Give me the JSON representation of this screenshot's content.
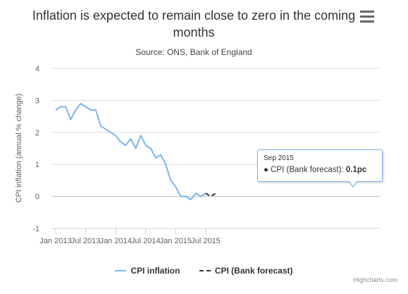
{
  "chart_data": {
    "type": "line",
    "title": "Inflation is expected to remain close to zero in the coming months",
    "subtitle": "Source: ONS, Bank of England",
    "ylabel": "CPI inflation (annual % change)",
    "ylim": [
      -1,
      4
    ],
    "y_ticks": [
      "4",
      "3",
      "2",
      "1",
      "0",
      "-1"
    ],
    "x_tick_labels": [
      "Jan 2013",
      "Jul 2013",
      "Jan 2014",
      "Jul 2014",
      "Jan 2015",
      "Jul 2015"
    ],
    "x": [
      "2013-01",
      "2013-02",
      "2013-03",
      "2013-04",
      "2013-05",
      "2013-06",
      "2013-07",
      "2013-08",
      "2013-09",
      "2013-10",
      "2013-11",
      "2013-12",
      "2014-01",
      "2014-02",
      "2014-03",
      "2014-04",
      "2014-05",
      "2014-06",
      "2014-07",
      "2014-08",
      "2014-09",
      "2014-10",
      "2014-11",
      "2014-12",
      "2015-01",
      "2015-02",
      "2015-03",
      "2015-04",
      "2015-05",
      "2015-06",
      "2015-07",
      "2015-08",
      "2015-09"
    ],
    "grid": true,
    "legend_position": "bottom-center",
    "series": [
      {
        "name": "CPI inflation",
        "color": "#7cb5ec",
        "dash": "solid",
        "values": [
          2.7,
          2.8,
          2.8,
          2.4,
          2.7,
          2.9,
          2.8,
          2.7,
          2.7,
          2.2,
          2.1,
          2.0,
          1.9,
          1.7,
          1.6,
          1.8,
          1.5,
          1.9,
          1.6,
          1.5,
          1.2,
          1.3,
          1.0,
          0.5,
          0.3,
          0.0,
          0.0,
          -0.1,
          0.1,
          0.0,
          0.1,
          null,
          null
        ]
      },
      {
        "name": "CPI (Bank forecast)",
        "color": "#333333",
        "dash": "dashed",
        "values": [
          null,
          null,
          null,
          null,
          null,
          null,
          null,
          null,
          null,
          null,
          null,
          null,
          null,
          null,
          null,
          null,
          null,
          null,
          null,
          null,
          null,
          null,
          null,
          null,
          null,
          null,
          null,
          null,
          null,
          null,
          0.1,
          0.0,
          0.1
        ]
      }
    ],
    "tooltip": {
      "header": "Sep 2015",
      "bullet": "●",
      "series_label": "CPI (Bank forecast): ",
      "value": "0.1pc"
    }
  },
  "ui": {
    "menu_icon": "hamburger-menu-icon",
    "credits": "Highcharts.com"
  }
}
